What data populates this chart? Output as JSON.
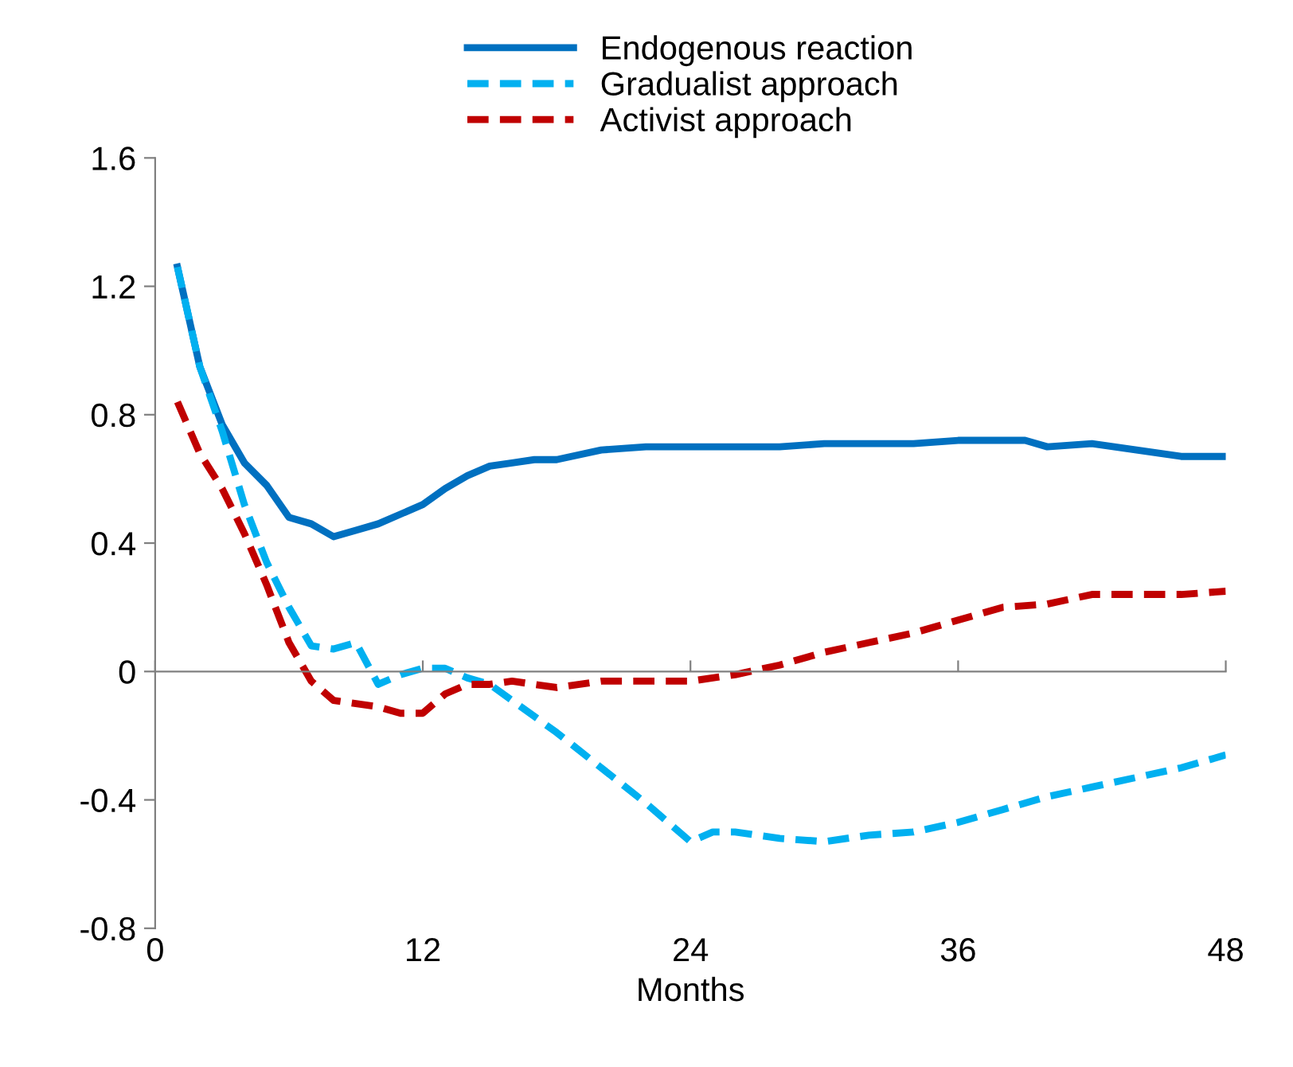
{
  "chart_data": {
    "type": "line",
    "xlabel": "Months",
    "xlim": [
      0,
      48
    ],
    "xticks": [
      0,
      12,
      24,
      36,
      48
    ],
    "ylim": [
      -0.8,
      1.6
    ],
    "yticks": [
      -0.8,
      -0.4,
      0,
      0.4,
      0.8,
      1.2,
      1.6
    ],
    "legend": "top",
    "marker": "none",
    "series": [
      {
        "name": "Endogenous reaction",
        "color": "#0070c0",
        "line_style": "solid",
        "x": [
          1,
          2,
          3,
          4,
          5,
          6,
          7,
          8,
          9,
          10,
          11,
          12,
          13,
          14,
          15,
          16,
          17,
          18,
          20,
          22,
          24,
          26,
          28,
          30,
          32,
          34,
          36,
          38,
          39,
          40,
          42,
          44,
          46,
          48
        ],
        "values": [
          1.26,
          0.95,
          0.77,
          0.65,
          0.58,
          0.48,
          0.46,
          0.42,
          0.44,
          0.46,
          0.49,
          0.52,
          0.57,
          0.61,
          0.64,
          0.65,
          0.66,
          0.66,
          0.69,
          0.7,
          0.7,
          0.7,
          0.7,
          0.71,
          0.71,
          0.71,
          0.72,
          0.72,
          0.72,
          0.7,
          0.71,
          0.69,
          0.67,
          0.67
        ]
      },
      {
        "name": "Gradualist approach",
        "color": "#00b0f0",
        "line_style": "dashed",
        "x": [
          1,
          2,
          3,
          4,
          5,
          6,
          7,
          8,
          9,
          10,
          11,
          12,
          13,
          14,
          15,
          16,
          18,
          20,
          22,
          24,
          25,
          26,
          28,
          30,
          32,
          34,
          36,
          38,
          40,
          42,
          44,
          46,
          48
        ],
        "values": [
          1.26,
          0.95,
          0.75,
          0.52,
          0.34,
          0.2,
          0.08,
          0.07,
          0.09,
          -0.04,
          -0.01,
          0.01,
          0.01,
          -0.02,
          -0.04,
          -0.09,
          -0.19,
          -0.3,
          -0.41,
          -0.53,
          -0.5,
          -0.5,
          -0.52,
          -0.53,
          -0.51,
          -0.5,
          -0.47,
          -0.43,
          -0.39,
          -0.36,
          -0.33,
          -0.3,
          -0.26
        ]
      },
      {
        "name": "Activist approach",
        "color": "#c00000",
        "line_style": "dashed",
        "x": [
          1,
          2,
          3,
          4,
          5,
          6,
          7,
          8,
          9,
          10,
          11,
          12,
          13,
          14,
          15,
          16,
          18,
          20,
          22,
          24,
          26,
          28,
          30,
          32,
          34,
          36,
          38,
          40,
          42,
          44,
          46,
          48
        ],
        "values": [
          0.84,
          0.68,
          0.57,
          0.43,
          0.27,
          0.09,
          -0.03,
          -0.09,
          -0.1,
          -0.11,
          -0.13,
          -0.13,
          -0.07,
          -0.04,
          -0.04,
          -0.03,
          -0.05,
          -0.03,
          -0.03,
          -0.03,
          -0.01,
          0.02,
          0.06,
          0.09,
          0.12,
          0.16,
          0.2,
          0.21,
          0.24,
          0.24,
          0.24,
          0.25
        ]
      }
    ]
  }
}
